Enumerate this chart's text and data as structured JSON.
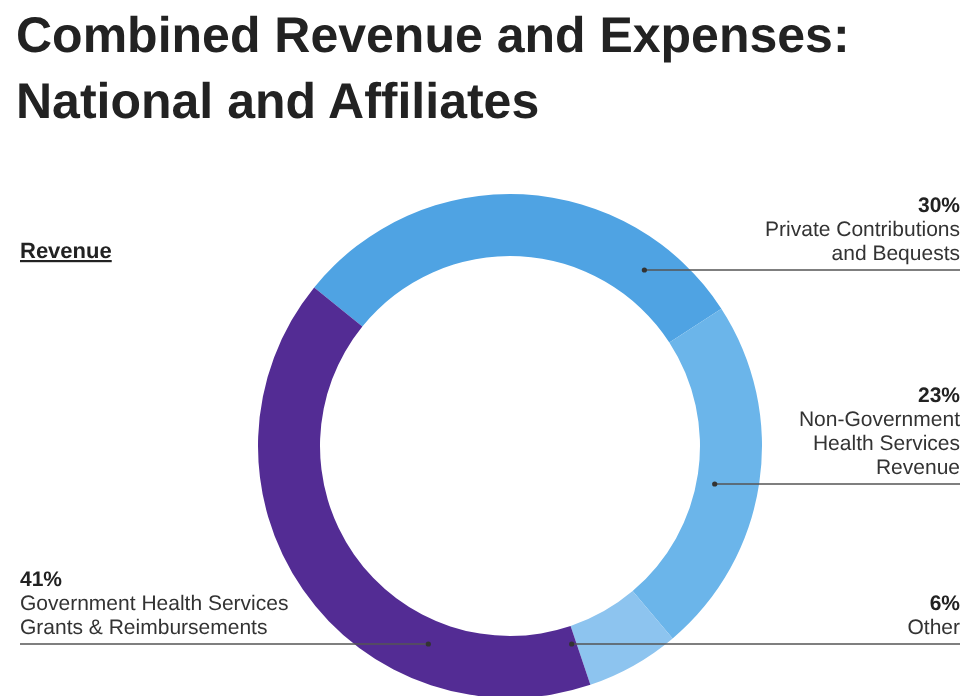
{
  "chart_data": {
    "type": "donut",
    "title": "Combined Revenue and Expenses: National and Affiliates",
    "subtitle": "Revenue",
    "categories": [
      "Private Contributions and Bequests",
      "Non-Government Health Services Revenue",
      "Other",
      "Government Health Services Grants & Reimbursements"
    ],
    "values": [
      30,
      23,
      6,
      41
    ],
    "value_labels": [
      "30%",
      "23%",
      "6%",
      "41%"
    ],
    "colors": [
      "#4fa3e3",
      "#6bb5ea",
      "#8dc4ef",
      "#532c94"
    ]
  }
}
